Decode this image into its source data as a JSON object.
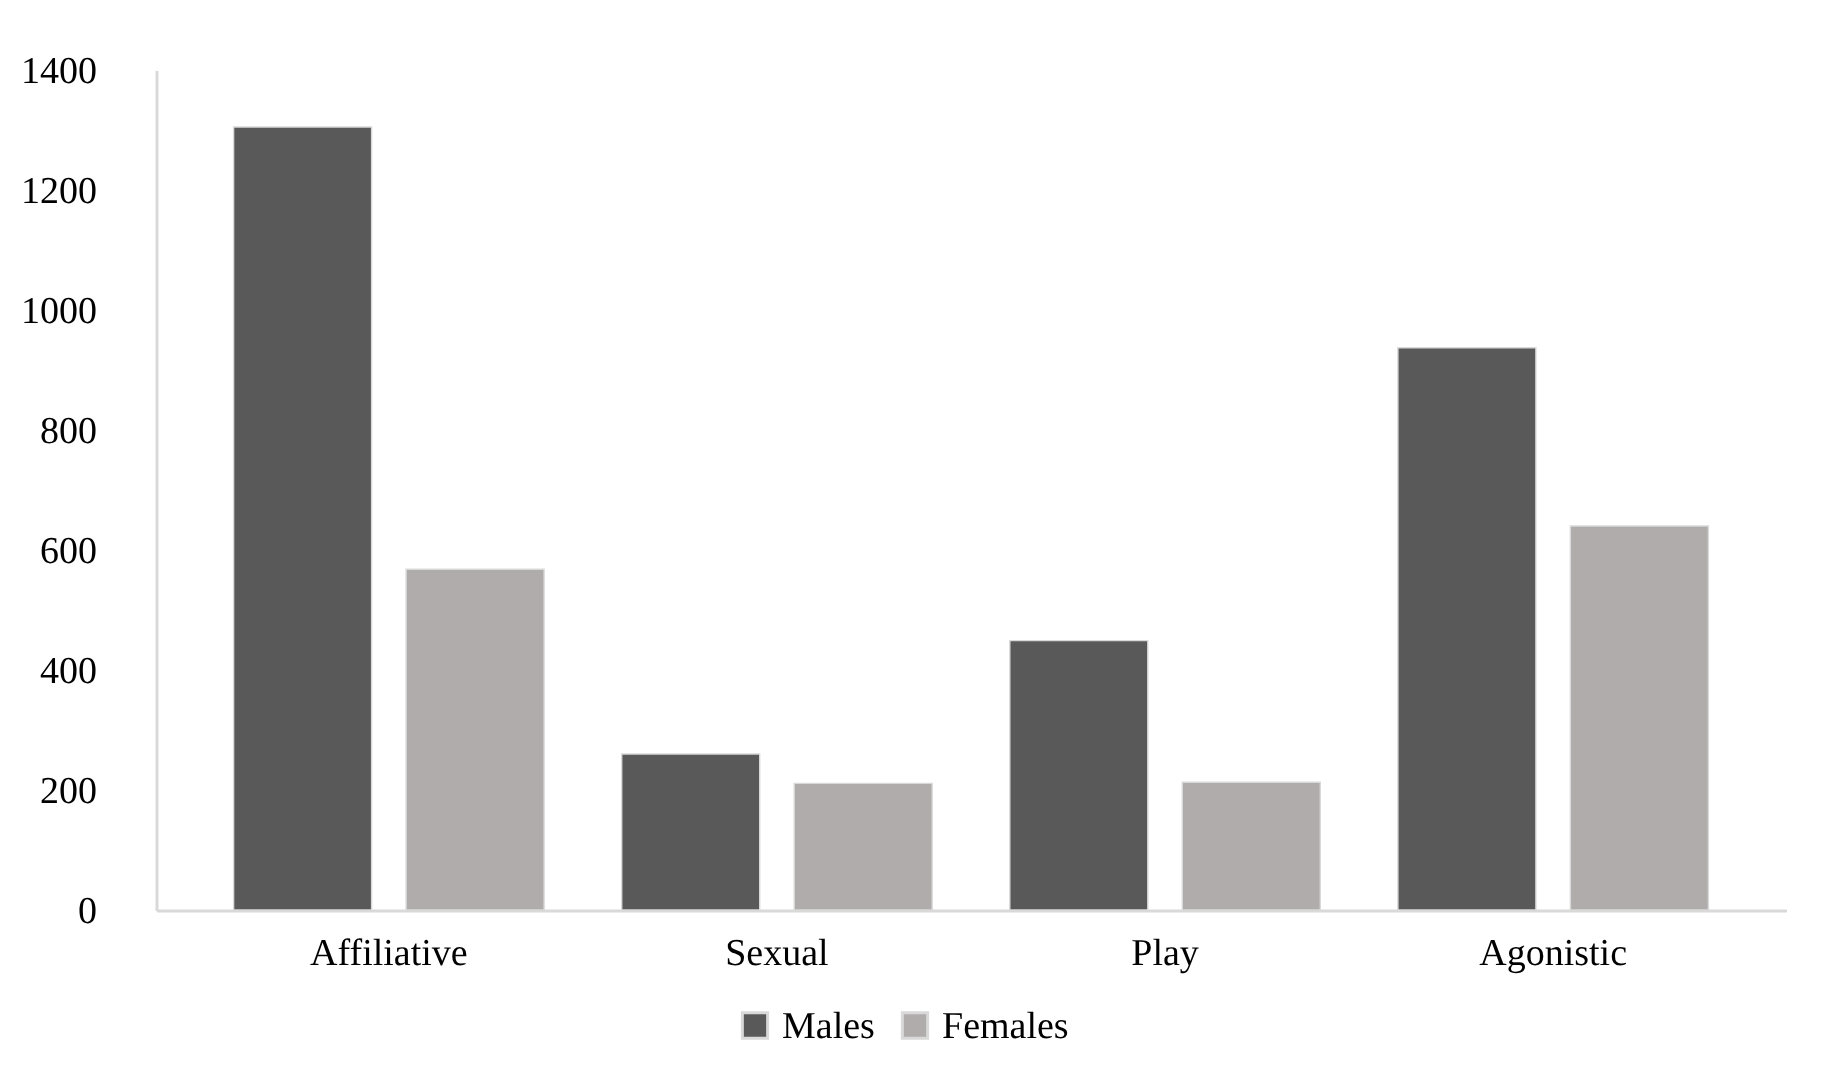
{
  "chart_data": {
    "type": "bar",
    "categories": [
      "Affiliative",
      "Sexual",
      "Play",
      "Agonistic"
    ],
    "series": [
      {
        "name": "Males",
        "color": "#595959",
        "values": [
          1305,
          260,
          449,
          937
        ]
      },
      {
        "name": "Females",
        "color": "#afacab",
        "values": [
          568,
          211,
          213,
          640
        ]
      }
    ],
    "ylim": [
      0,
      1400
    ],
    "yticks": [
      0,
      200,
      400,
      600,
      800,
      1000,
      1200,
      1400
    ],
    "grid": false,
    "legend": "bottom"
  }
}
